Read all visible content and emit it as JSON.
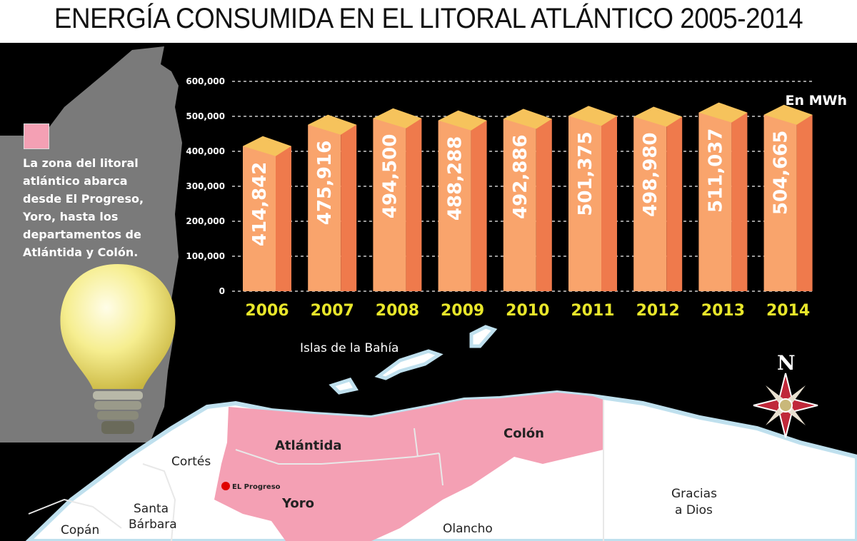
{
  "title": "ENERGÍA CONSUMIDA EN EL LITORAL ATLÁNTICO 2005-2014",
  "legend": {
    "color": "#f4a0b4",
    "text": "La zona del litoral atlántico abarca desde El Progreso, Yoro, hasta los departamentos de Atlántida y Colón."
  },
  "chart_data": {
    "type": "bar",
    "title": "ENERGÍA CONSUMIDA EN EL LITORAL ATLÁNTICO 2005-2014",
    "unit": "En MWh",
    "categories": [
      "2006",
      "2007",
      "2008",
      "2009",
      "2010",
      "2011",
      "2012",
      "2013",
      "2014"
    ],
    "values": [
      414842,
      475916,
      494500,
      488288,
      492886,
      501375,
      498980,
      511037,
      504665
    ],
    "value_labels": [
      "414,842",
      "475,916",
      "494,500",
      "488,288",
      "492,886",
      "501,375",
      "498,980",
      "511,037",
      "504,665"
    ],
    "ylim": [
      0,
      600000
    ],
    "yticks": [
      "0",
      "100,000",
      "200,000",
      "300,000",
      "400,000",
      "500,000",
      "600,000"
    ],
    "grid": true,
    "colors": {
      "front": "#f9a46c",
      "side": "#ef7a4c",
      "top": "#f6c35c",
      "year": "#e8e62a"
    }
  },
  "map": {
    "labels": {
      "islas": "Islas de la Bahía",
      "atlantida": "Atlántida",
      "colon": "Colón",
      "cortes": "Cortés",
      "progreso": "EL Progreso",
      "yoro": "Yoro",
      "santa_barbara_1": "Santa",
      "santa_barbara_2": "Bárbara",
      "copan": "Copán",
      "olancho": "Olancho",
      "gracias_1": "Gracias",
      "gracias_2": "a Dios",
      "north": "N"
    },
    "colors": {
      "zone": "#f4a0b4",
      "land": "#ffffff",
      "coast": "#bfe0ee",
      "progreso_dot": "#e00000"
    }
  }
}
